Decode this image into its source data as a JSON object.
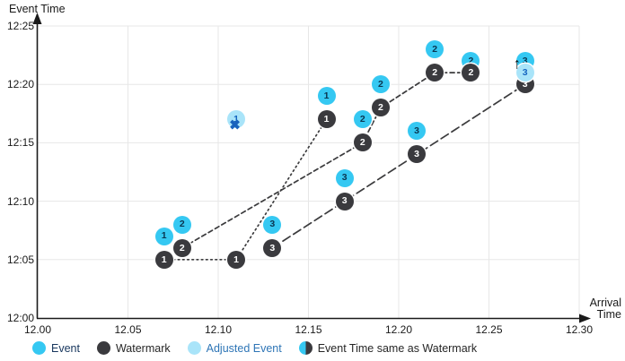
{
  "colors": {
    "event_fill": "#35c8f2",
    "event_number": "#0a3550",
    "watermark_fill": "#3a3a3e",
    "watermark_number": "#ffffff",
    "adjusted_fill": "#a9e4f9",
    "adjusted_number": "#1565c0",
    "cross": "#1962bd",
    "grid": "#e7e7e7",
    "axis": "#1a1a1a",
    "line": "#3b3b3d",
    "legend_event_text": "#17365d",
    "legend_dark_text": "#262626",
    "legend_adjusted_text": "#2e75b6"
  },
  "icons": {
    "crossed_out_glyph": "✖",
    "arrow_up_glyph": "↑"
  },
  "chart_data": {
    "type": "scatter",
    "title": "",
    "x_axis": {
      "label_line1": "Arrival",
      "label_line2": "Time",
      "ticks": [
        "12.00",
        "12.05",
        "12.10",
        "12.15",
        "12.20",
        "12.25",
        "12.30"
      ],
      "minutes_range": [
        0,
        30
      ]
    },
    "y_axis": {
      "label": "Event Time",
      "ticks": [
        "12:00",
        "12:05",
        "12:10",
        "12:15",
        "12:20",
        "12:25"
      ],
      "minutes_range": [
        0,
        25
      ]
    },
    "grid": true,
    "series": {
      "events": {
        "name": "Event",
        "points": [
          {
            "stream": "1",
            "arrival": "12.07",
            "event_time": "12:07",
            "x": 7,
            "y": 7
          },
          {
            "stream": "1",
            "arrival": "12.16",
            "event_time": "12:19",
            "x": 16,
            "y": 19
          },
          {
            "stream": "2",
            "arrival": "12.08",
            "event_time": "12:08",
            "x": 8,
            "y": 8
          },
          {
            "stream": "2",
            "arrival": "12.18",
            "event_time": "12:17",
            "x": 18,
            "y": 17
          },
          {
            "stream": "2",
            "arrival": "12.19",
            "event_time": "12:20",
            "x": 19,
            "y": 20
          },
          {
            "stream": "2",
            "arrival": "12.22",
            "event_time": "12:23",
            "x": 22,
            "y": 23
          },
          {
            "stream": "2",
            "arrival": "12.24",
            "event_time": "12:22",
            "x": 24,
            "y": 22
          },
          {
            "stream": "3",
            "arrival": "12.13",
            "event_time": "12:08",
            "x": 13,
            "y": 8
          },
          {
            "stream": "3",
            "arrival": "12.17",
            "event_time": "12:12",
            "x": 17,
            "y": 12
          },
          {
            "stream": "3",
            "arrival": "12.21",
            "event_time": "12:16",
            "x": 21,
            "y": 16
          },
          {
            "stream": "3",
            "arrival": "12.27",
            "event_time": "12:22",
            "x": 27,
            "y": 22
          }
        ]
      },
      "watermarks": {
        "name": "Watermark",
        "lines": [
          {
            "stream": "1",
            "style": "dotted",
            "points": [
              {
                "arrival": "12.07",
                "event_time": "12:05",
                "x": 7,
                "y": 5
              },
              {
                "arrival": "12.11",
                "event_time": "12:05",
                "x": 11,
                "y": 5
              },
              {
                "arrival": "12.16",
                "event_time": "12:17",
                "x": 16,
                "y": 17
              }
            ]
          },
          {
            "stream": "2",
            "style": "dashed",
            "points": [
              {
                "arrival": "12.08",
                "event_time": "12:06",
                "x": 8,
                "y": 6
              },
              {
                "arrival": "12.18",
                "event_time": "12:15",
                "x": 18,
                "y": 15
              },
              {
                "arrival": "12.19",
                "event_time": "12:18",
                "x": 19,
                "y": 18
              },
              {
                "arrival": "12.22",
                "event_time": "12:21",
                "x": 22,
                "y": 21
              },
              {
                "arrival": "12.24",
                "event_time": "12:21",
                "x": 24,
                "y": 21
              }
            ]
          },
          {
            "stream": "3",
            "style": "long-dash",
            "points": [
              {
                "arrival": "12.13",
                "event_time": "12:06",
                "x": 13,
                "y": 6
              },
              {
                "arrival": "12.17",
                "event_time": "12:10",
                "x": 17,
                "y": 10
              },
              {
                "arrival": "12.21",
                "event_time": "12:14",
                "x": 21,
                "y": 14
              },
              {
                "arrival": "12.27",
                "event_time": "12:20",
                "x": 27,
                "y": 20
              }
            ]
          }
        ]
      },
      "adjusted_events": {
        "name": "Adjusted Event",
        "points": [
          {
            "stream": "1",
            "arrival": "12.11",
            "event_time": "12:17",
            "x": 11,
            "y": 17,
            "crossed_out": true
          },
          {
            "stream": "3",
            "arrival": "12.27",
            "event_time": "12:21",
            "x": 27,
            "y": 21,
            "arrow_up": true
          }
        ]
      }
    }
  },
  "legend": {
    "items": [
      {
        "label": "Event",
        "swatch": "event",
        "text_color_key": "legend_event_text"
      },
      {
        "label": "Watermark",
        "swatch": "watermark",
        "text_color_key": "legend_dark_text"
      },
      {
        "label": "Adjusted Event",
        "swatch": "adjusted",
        "text_color_key": "legend_adjusted_text"
      },
      {
        "label": "Event Time same as Watermark",
        "swatch": "half",
        "text_color_key": "legend_dark_text"
      }
    ]
  }
}
